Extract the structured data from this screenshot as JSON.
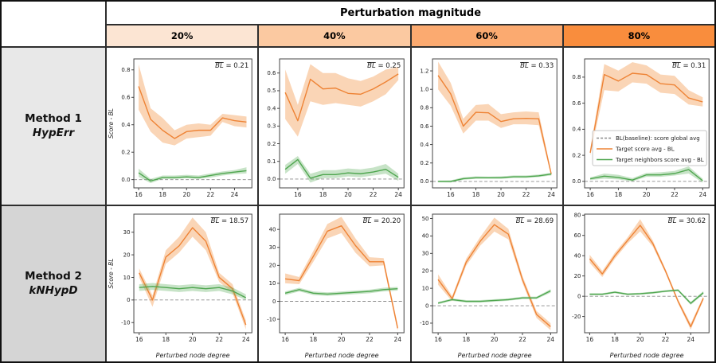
{
  "header": {
    "title": "Perturbation magnitude",
    "columns": [
      {
        "label": "20%",
        "color": "#fce5d3"
      },
      {
        "label": "40%",
        "color": "#fbc9a1"
      },
      {
        "label": "60%",
        "color": "#fbaa70"
      },
      {
        "label": "80%",
        "color": "#f98d3d"
      }
    ]
  },
  "rows": [
    {
      "method": "Method 1",
      "algo": "HypErr",
      "bg": "#e8e8e8"
    },
    {
      "method": "Method 2",
      "algo": "kNHypD",
      "bg": "#d5d5d5"
    }
  ],
  "axes": {
    "ylabel": "Score - BL",
    "xlabel": "Perturbed node degree"
  },
  "bl_symbol": "BL",
  "colors": {
    "target": "#ee8335",
    "target_band": "#f49a52",
    "neighbors": "#4fa64f",
    "neighbors_band": "#5faf5f",
    "baseline": "#8a8a8a"
  },
  "legend": {
    "entries": [
      {
        "label": "BL(baseline): score global avg",
        "color": "#8a8a8a",
        "dashed": true
      },
      {
        "label": "Target score avg - BL",
        "color": "#ee8335",
        "dashed": false
      },
      {
        "label": "Target neighbors score avg - BL",
        "color": "#4fa64f",
        "dashed": false
      }
    ]
  },
  "chart_data": [
    {
      "type": "line",
      "row": 0,
      "col": 0,
      "method": "Method 1 HypErr",
      "perturbation": "20%",
      "bl": "0.21",
      "x": [
        16,
        17,
        18,
        19,
        20,
        21,
        22,
        23,
        24,
        25
      ],
      "xticks": [
        16,
        18,
        20,
        22,
        24
      ],
      "xlim": [
        15.6,
        25.45
      ],
      "yticks": [
        0.0,
        0.2,
        0.4,
        0.6,
        0.8
      ],
      "ylim": [
        -0.06,
        0.88
      ],
      "ydecimals": 1,
      "series": [
        {
          "name": "Target score avg - BL",
          "y": [
            0.68,
            0.44,
            0.36,
            0.3,
            0.35,
            0.36,
            0.36,
            0.45,
            0.43,
            0.42
          ],
          "lo": [
            0.51,
            0.35,
            0.27,
            0.25,
            0.3,
            0.31,
            0.32,
            0.42,
            0.39,
            0.38
          ],
          "hi": [
            0.84,
            0.52,
            0.45,
            0.36,
            0.4,
            0.41,
            0.4,
            0.48,
            0.47,
            0.46
          ]
        },
        {
          "name": "Target neighbors score avg - BL",
          "y": [
            0.05,
            -0.01,
            0.015,
            0.015,
            0.02,
            0.015,
            0.03,
            0.045,
            0.055,
            0.065
          ],
          "lo": [
            0.02,
            -0.025,
            0.005,
            0.005,
            0.01,
            0.005,
            0.015,
            0.03,
            0.04,
            0.045
          ],
          "hi": [
            0.08,
            0.005,
            0.03,
            0.03,
            0.035,
            0.03,
            0.045,
            0.06,
            0.07,
            0.09
          ]
        }
      ],
      "show_legend": false,
      "show_xlabel": false,
      "show_ylabel": true
    },
    {
      "type": "line",
      "row": 0,
      "col": 1,
      "method": "Method 1 HypErr",
      "perturbation": "40%",
      "bl": "0.25",
      "x": [
        15,
        16,
        17,
        18,
        19,
        20,
        21,
        22,
        23,
        24
      ],
      "xticks": [
        16,
        18,
        20,
        22,
        24
      ],
      "xlim": [
        14.55,
        24.45
      ],
      "yticks": [
        0.0,
        0.1,
        0.2,
        0.3,
        0.4,
        0.5,
        0.6
      ],
      "ylim": [
        -0.05,
        0.68
      ],
      "ydecimals": 1,
      "series": [
        {
          "name": "Target score avg - BL",
          "y": [
            0.49,
            0.33,
            0.565,
            0.51,
            0.515,
            0.485,
            0.48,
            0.51,
            0.55,
            0.595
          ],
          "lo": [
            0.34,
            0.24,
            0.44,
            0.42,
            0.43,
            0.42,
            0.41,
            0.44,
            0.48,
            0.56
          ],
          "hi": [
            0.62,
            0.42,
            0.65,
            0.6,
            0.6,
            0.57,
            0.555,
            0.58,
            0.62,
            0.635
          ]
        },
        {
          "name": "Target neighbors score avg - BL",
          "y": [
            0.055,
            0.11,
            0.005,
            0.025,
            0.025,
            0.035,
            0.03,
            0.04,
            0.055,
            0.01
          ],
          "lo": [
            0.03,
            0.085,
            -0.02,
            0.005,
            0.005,
            0.015,
            0.01,
            0.02,
            0.03,
            -0.01
          ],
          "hi": [
            0.08,
            0.13,
            0.03,
            0.05,
            0.05,
            0.06,
            0.055,
            0.065,
            0.085,
            0.03
          ]
        }
      ],
      "show_legend": false,
      "show_xlabel": false,
      "show_ylabel": false
    },
    {
      "type": "line",
      "row": 0,
      "col": 2,
      "method": "Method 1 HypErr",
      "perturbation": "60%",
      "bl": "0.33",
      "x": [
        15,
        16,
        17,
        18,
        19,
        20,
        21,
        22,
        23,
        24
      ],
      "xticks": [
        16,
        18,
        20,
        22,
        24
      ],
      "xlim": [
        14.55,
        24.45
      ],
      "yticks": [
        0.0,
        0.2,
        0.4,
        0.6,
        0.8,
        1.0,
        1.2
      ],
      "ylim": [
        -0.07,
        1.33
      ],
      "ydecimals": 1,
      "series": [
        {
          "name": "Target score avg - BL",
          "y": [
            1.15,
            0.95,
            0.6,
            0.75,
            0.745,
            0.65,
            0.68,
            0.685,
            0.68,
            0.08
          ],
          "lo": [
            1.0,
            0.82,
            0.52,
            0.66,
            0.66,
            0.58,
            0.62,
            0.62,
            0.61,
            0.06
          ],
          "hi": [
            1.3,
            1.07,
            0.68,
            0.83,
            0.84,
            0.73,
            0.75,
            0.76,
            0.75,
            0.1
          ]
        },
        {
          "name": "Target neighbors score avg - BL",
          "y": [
            0.0,
            0.0,
            0.03,
            0.04,
            0.04,
            0.04,
            0.05,
            0.05,
            0.06,
            0.08
          ],
          "lo": [
            -0.01,
            -0.012,
            0.018,
            0.028,
            0.028,
            0.028,
            0.038,
            0.038,
            0.048,
            0.065
          ],
          "hi": [
            0.01,
            0.012,
            0.045,
            0.055,
            0.052,
            0.055,
            0.065,
            0.065,
            0.075,
            0.095
          ]
        }
      ],
      "show_legend": false,
      "show_xlabel": false,
      "show_ylabel": false
    },
    {
      "type": "line",
      "row": 0,
      "col": 3,
      "method": "Method 1 HypErr",
      "perturbation": "80%",
      "bl": "0.31",
      "x": [
        16,
        17,
        18,
        19,
        20,
        21,
        22,
        23,
        24
      ],
      "xticks": [
        16,
        18,
        20,
        22,
        24
      ],
      "xlim": [
        15.6,
        24.45
      ],
      "yticks": [
        0.0,
        0.2,
        0.4,
        0.6,
        0.8
      ],
      "ylim": [
        -0.05,
        0.94
      ],
      "ydecimals": 1,
      "series": [
        {
          "name": "Target score avg - BL",
          "y": [
            0.22,
            0.82,
            0.77,
            0.83,
            0.82,
            0.75,
            0.74,
            0.64,
            0.61
          ],
          "lo": [
            0.2,
            0.7,
            0.69,
            0.76,
            0.75,
            0.68,
            0.67,
            0.59,
            0.575
          ],
          "hi": [
            0.245,
            0.9,
            0.85,
            0.915,
            0.89,
            0.82,
            0.81,
            0.7,
            0.645
          ]
        },
        {
          "name": "Target neighbors score avg - BL",
          "y": [
            0.02,
            0.04,
            0.03,
            0.01,
            0.05,
            0.05,
            0.06,
            0.09,
            0.005
          ],
          "lo": [
            0.01,
            0.02,
            0.015,
            0.0,
            0.035,
            0.035,
            0.045,
            0.06,
            -0.01
          ],
          "hi": [
            0.03,
            0.06,
            0.05,
            0.025,
            0.065,
            0.07,
            0.08,
            0.115,
            0.02
          ]
        }
      ],
      "show_legend": true,
      "show_xlabel": false,
      "show_ylabel": false
    },
    {
      "type": "line",
      "row": 1,
      "col": 0,
      "method": "Method 2 kNHypD",
      "perturbation": "20%",
      "bl": "18.57",
      "x": [
        16,
        17,
        18,
        19,
        20,
        21,
        22,
        23,
        24
      ],
      "xticks": [
        16,
        18,
        20,
        22,
        24
      ],
      "xlim": [
        15.6,
        24.45
      ],
      "yticks": [
        -10,
        0,
        10,
        20,
        30
      ],
      "ylim": [
        -14.5,
        38
      ],
      "ydecimals": 0,
      "series": [
        {
          "name": "Target score avg - BL",
          "y": [
            12,
            0,
            19,
            24,
            32,
            26,
            10,
            5,
            -11
          ],
          "lo": [
            10,
            -3,
            16,
            21,
            28,
            22,
            8,
            3,
            -13
          ],
          "hi": [
            14,
            2,
            22,
            28,
            36.5,
            30,
            12,
            7,
            -9
          ]
        },
        {
          "name": "Target neighbors score avg - BL",
          "y": [
            5.5,
            6,
            5.5,
            5,
            5.5,
            5,
            5.5,
            4,
            1
          ],
          "lo": [
            4,
            4.5,
            4,
            3.5,
            4,
            3.5,
            4,
            2.5,
            0
          ],
          "hi": [
            7,
            7.5,
            7,
            6.5,
            7,
            6.5,
            7,
            5.5,
            2.5
          ]
        }
      ],
      "show_legend": false,
      "show_xlabel": true,
      "show_ylabel": true
    },
    {
      "type": "line",
      "row": 1,
      "col": 1,
      "method": "Method 2 kNHypD",
      "perturbation": "40%",
      "bl": "20.20",
      "x": [
        16,
        17,
        18,
        19,
        20,
        21,
        22,
        23,
        24
      ],
      "xticks": [
        16,
        18,
        20,
        22,
        24
      ],
      "xlim": [
        15.6,
        24.45
      ],
      "yticks": [
        -10,
        0,
        10,
        20,
        30,
        40
      ],
      "ylim": [
        -17.5,
        48.5
      ],
      "ydecimals": 0,
      "series": [
        {
          "name": "Target score avg - BL",
          "y": [
            12.5,
            11.5,
            25,
            39,
            42,
            31,
            22,
            22,
            -15
          ],
          "lo": [
            10,
            9.5,
            22,
            35,
            38,
            27,
            19.5,
            20,
            -16.5
          ],
          "hi": [
            15.5,
            13.5,
            28,
            43,
            47,
            35,
            24.5,
            24,
            -13
          ]
        },
        {
          "name": "Target neighbors score avg - BL",
          "y": [
            4.5,
            6.5,
            4.5,
            4,
            4.5,
            5,
            5.5,
            6.5,
            7
          ],
          "lo": [
            3.5,
            5.5,
            3.5,
            3,
            3.5,
            4,
            4.5,
            5.5,
            6
          ],
          "hi": [
            5.5,
            7.5,
            5.5,
            5,
            5.5,
            6,
            6.5,
            7.5,
            8
          ]
        }
      ],
      "show_legend": false,
      "show_xlabel": true,
      "show_ylabel": false
    },
    {
      "type": "line",
      "row": 1,
      "col": 2,
      "method": "Method 2 kNHypD",
      "perturbation": "60%",
      "bl": "28.69",
      "x": [
        16,
        17,
        18,
        19,
        20,
        21,
        22,
        23,
        24
      ],
      "xticks": [
        16,
        18,
        20,
        22,
        24
      ],
      "xlim": [
        15.6,
        24.45
      ],
      "yticks": [
        -10,
        0,
        10,
        20,
        30,
        40,
        50
      ],
      "ylim": [
        -15.5,
        52.5
      ],
      "ydecimals": 0,
      "series": [
        {
          "name": "Target score avg - BL",
          "y": [
            15,
            4,
            25,
            37,
            46.5,
            41,
            15,
            -5,
            -12
          ],
          "lo": [
            12,
            2.5,
            23,
            34.5,
            42.5,
            38,
            13,
            -7,
            -14
          ],
          "hi": [
            18,
            5.5,
            27,
            39.5,
            50.5,
            44,
            17,
            -3,
            -10
          ]
        },
        {
          "name": "Target neighbors score avg - BL",
          "y": [
            1.5,
            3.5,
            2.5,
            2.5,
            3,
            3.5,
            4.5,
            4.5,
            8.5
          ],
          "lo": [
            0.8,
            2.8,
            1.8,
            1.8,
            2.3,
            2.8,
            3.8,
            3.8,
            7.5
          ],
          "hi": [
            2.2,
            4.2,
            3.2,
            3.2,
            3.7,
            4.2,
            5.2,
            5.2,
            9.5
          ]
        }
      ],
      "show_legend": false,
      "show_xlabel": true,
      "show_ylabel": false
    },
    {
      "type": "line",
      "row": 1,
      "col": 3,
      "method": "Method 2 kNHypD",
      "perturbation": "80%",
      "bl": "30.62",
      "x": [
        16,
        17,
        18,
        19,
        20,
        21,
        22,
        23,
        24,
        25
      ],
      "xticks": [
        16,
        18,
        20,
        22,
        24
      ],
      "xlim": [
        15.6,
        25.45
      ],
      "yticks": [
        -20,
        0,
        20,
        40,
        60,
        80
      ],
      "ylim": [
        -36,
        81
      ],
      "ydecimals": 0,
      "series": [
        {
          "name": "Target score avg - BL",
          "y": [
            37,
            22,
            40,
            55,
            70,
            52,
            25,
            -5,
            -30,
            -2
          ],
          "lo": [
            33,
            19,
            37,
            52,
            64,
            49,
            23,
            -7,
            -33,
            -4
          ],
          "hi": [
            41,
            25,
            43,
            58,
            76,
            55,
            27,
            -3,
            -27,
            0
          ]
        },
        {
          "name": "Target neighbors score avg - BL",
          "y": [
            2,
            2,
            4,
            2,
            2.5,
            3.5,
            5,
            6,
            -7,
            3.5
          ],
          "lo": [
            1,
            1,
            3,
            1,
            1.5,
            2.5,
            4,
            5,
            -8.5,
            2
          ],
          "hi": [
            3,
            3,
            5,
            3,
            3.5,
            4.5,
            6,
            7,
            -5.5,
            5
          ]
        }
      ],
      "show_legend": false,
      "show_xlabel": true,
      "show_ylabel": false
    }
  ]
}
